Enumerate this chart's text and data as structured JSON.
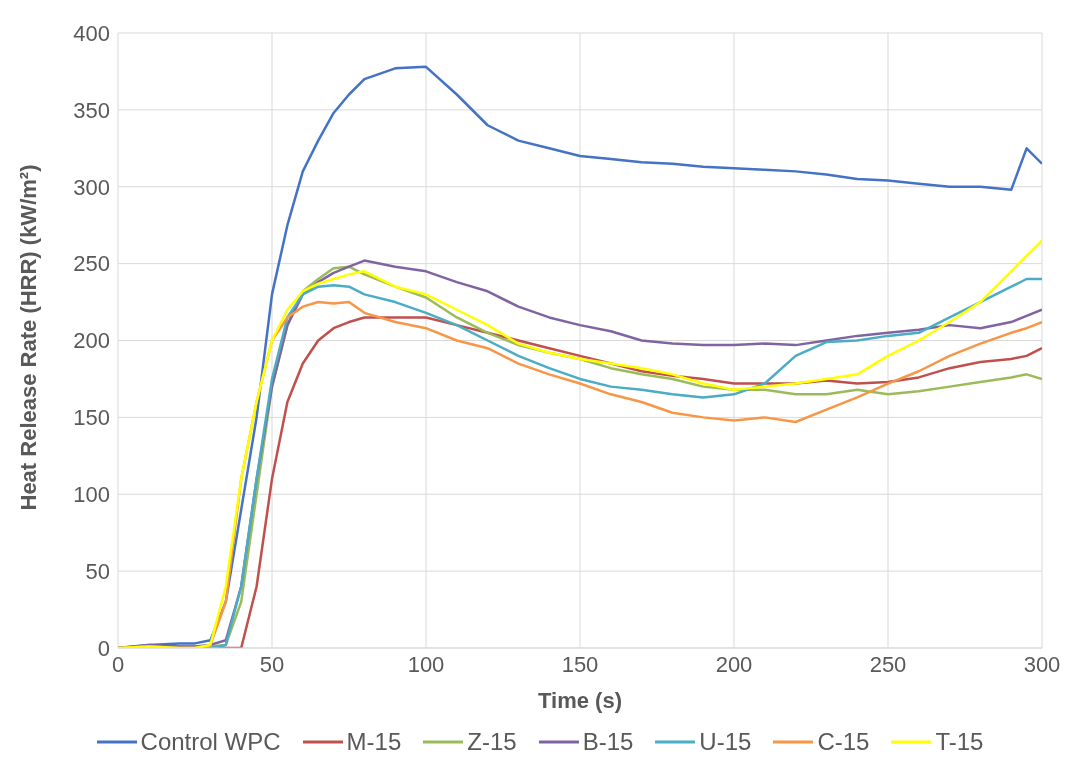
{
  "chart_data": {
    "type": "line",
    "xlabel": "Time (s)",
    "ylabel": "Heat Release Rate (HRR) (kW/m²)",
    "x": [
      0,
      10,
      20,
      25,
      30,
      35,
      40,
      45,
      50,
      55,
      60,
      65,
      70,
      75,
      80,
      90,
      100,
      110,
      120,
      130,
      140,
      150,
      160,
      170,
      180,
      190,
      200,
      210,
      220,
      230,
      240,
      250,
      260,
      270,
      280,
      290,
      295,
      300
    ],
    "series": [
      {
        "name": "Control WPC",
        "color": "#4472c4",
        "values": [
          0,
          2,
          3,
          3,
          5,
          30,
          90,
          150,
          230,
          275,
          310,
          330,
          348,
          360,
          370,
          377,
          378,
          360,
          340,
          330,
          325,
          320,
          318,
          316,
          315,
          313,
          312,
          311,
          310,
          308,
          305,
          304,
          302,
          300,
          300,
          298,
          325,
          315
        ]
      },
      {
        "name": "M-15",
        "color": "#c0504d",
        "values": [
          null,
          null,
          null,
          0,
          0,
          0,
          0,
          40,
          110,
          160,
          185,
          200,
          208,
          212,
          215,
          215,
          215,
          210,
          205,
          200,
          195,
          190,
          185,
          180,
          177,
          175,
          172,
          172,
          172,
          174,
          172,
          173,
          176,
          182,
          186,
          188,
          190,
          195
        ]
      },
      {
        "name": "Z-15",
        "color": "#9bbb59",
        "values": [
          0,
          1,
          1,
          1,
          1,
          2,
          30,
          100,
          170,
          210,
          232,
          240,
          247,
          248,
          243,
          235,
          228,
          215,
          205,
          197,
          192,
          188,
          182,
          178,
          175,
          170,
          168,
          168,
          165,
          165,
          168,
          165,
          167,
          170,
          173,
          176,
          178,
          175
        ]
      },
      {
        "name": "B-15",
        "color": "#8064a2",
        "values": [
          0,
          2,
          1,
          1,
          2,
          5,
          40,
          110,
          170,
          210,
          230,
          238,
          244,
          248,
          252,
          248,
          245,
          238,
          232,
          222,
          215,
          210,
          206,
          200,
          198,
          197,
          197,
          198,
          197,
          200,
          203,
          205,
          207,
          210,
          208,
          212,
          216,
          220
        ]
      },
      {
        "name": "U-15",
        "color": "#4bacc6",
        "values": [
          null,
          null,
          null,
          0,
          0,
          2,
          40,
          110,
          175,
          215,
          230,
          235,
          236,
          235,
          230,
          225,
          218,
          210,
          200,
          190,
          182,
          175,
          170,
          168,
          165,
          163,
          165,
          172,
          190,
          199,
          200,
          203,
          205,
          215,
          225,
          235,
          240,
          240
        ]
      },
      {
        "name": "C-15",
        "color": "#f79646",
        "values": [
          0,
          1,
          0,
          0,
          2,
          30,
          110,
          160,
          200,
          215,
          222,
          225,
          224,
          225,
          218,
          212,
          208,
          200,
          195,
          185,
          178,
          172,
          165,
          160,
          153,
          150,
          148,
          150,
          147,
          155,
          163,
          172,
          180,
          190,
          198,
          205,
          208,
          212
        ]
      },
      {
        "name": "T-15",
        "color": "#ffff00",
        "values": [
          0,
          1,
          0,
          0,
          2,
          40,
          110,
          160,
          200,
          220,
          232,
          237,
          240,
          243,
          245,
          235,
          230,
          220,
          210,
          198,
          192,
          188,
          185,
          182,
          178,
          172,
          168,
          170,
          172,
          175,
          178,
          190,
          200,
          212,
          225,
          245,
          255,
          265
        ]
      }
    ],
    "xlim": [
      0,
      300
    ],
    "xticks": [
      0,
      50,
      100,
      150,
      200,
      250,
      300
    ],
    "ylim": [
      0,
      400
    ],
    "yticks": [
      0,
      50,
      100,
      150,
      200,
      250,
      300,
      350,
      400
    ],
    "grid": true,
    "legend": "bottom",
    "marker": "none",
    "line_style": "solid"
  }
}
